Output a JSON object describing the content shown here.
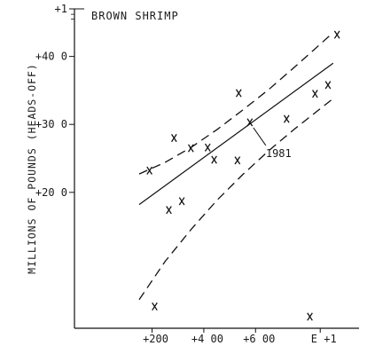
{
  "chart_data": {
    "type": "scatter",
    "title": "BROWN SHRIMP",
    "ylabel": "MILLIONS OF POUNDS (HEADS-OFF)",
    "xlabel": "",
    "x_tick_labels": [
      "+200",
      "+4 00",
      "+6 00",
      "E +1"
    ],
    "y_tick_labels": [
      "+20 0",
      "+30 0",
      "+40 0",
      "+1"
    ],
    "x_ticks": [
      200,
      400,
      600,
      850
    ],
    "y_ticks": [
      20,
      30,
      40,
      47
    ],
    "xlim": [
      -100,
      1000
    ],
    "ylim": [
      0,
      47
    ],
    "points": [
      {
        "x": 190,
        "y": 23.2
      },
      {
        "x": 210,
        "y": 3.2
      },
      {
        "x": 265,
        "y": 17.4
      },
      {
        "x": 285,
        "y": 28.0
      },
      {
        "x": 315,
        "y": 18.7
      },
      {
        "x": 350,
        "y": 26.5
      },
      {
        "x": 415,
        "y": 26.6
      },
      {
        "x": 440,
        "y": 24.8
      },
      {
        "x": 530,
        "y": 24.7
      },
      {
        "x": 535,
        "y": 34.6
      },
      {
        "x": 578,
        "y": 30.3
      },
      {
        "x": 720,
        "y": 30.8
      },
      {
        "x": 810,
        "y": 1.7
      },
      {
        "x": 830,
        "y": 34.5
      },
      {
        "x": 880,
        "y": 35.8
      },
      {
        "x": 915,
        "y": 43.2
      }
    ],
    "regression_line": {
      "x": [
        150,
        900
      ],
      "y": [
        18.2,
        39.0
      ]
    },
    "upper_band": {
      "x": [
        150,
        250,
        350,
        450,
        550,
        650,
        750,
        850,
        900
      ],
      "y": [
        22.7,
        24.4,
        26.6,
        29.2,
        32.1,
        35.1,
        38.4,
        41.8,
        43.5
      ]
    },
    "lower_band": {
      "x": [
        150,
        250,
        350,
        450,
        550,
        650,
        750,
        850,
        900
      ],
      "y": [
        4.2,
        9.8,
        14.5,
        18.8,
        22.6,
        26.1,
        29.3,
        32.3,
        33.8
      ]
    },
    "annotations": [
      {
        "text": "1981",
        "point_x": 578,
        "point_y": 30.3
      }
    ],
    "grid": false,
    "legend": "none"
  }
}
